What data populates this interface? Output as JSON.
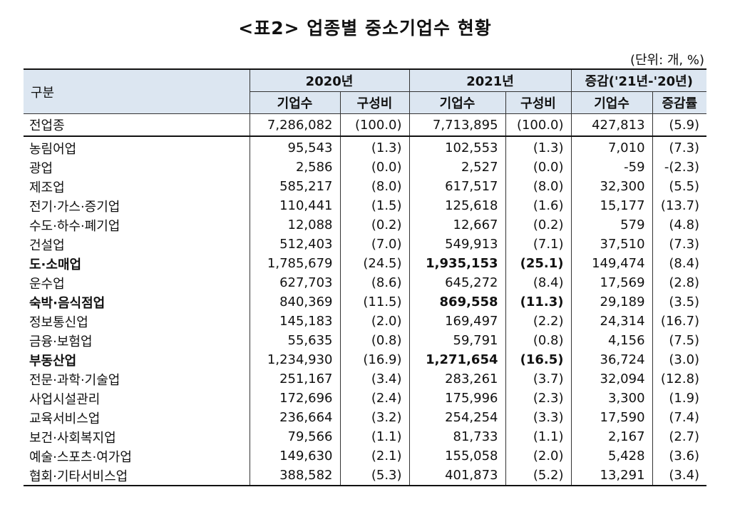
{
  "title": "<표2> 업종별 중소기업수 현황",
  "unit": "(단위: 개, %)",
  "header": {
    "category": "구분",
    "y2020": "2020년",
    "y2021": "2021년",
    "change": "증감('21년-'20년)",
    "count": "기업수",
    "ratio": "구성비",
    "rate": "증감률"
  },
  "rows": [
    {
      "label": "전업종",
      "c20": "7,286,082",
      "r20": "(100.0)",
      "c21": "7,713,895",
      "r21": "(100.0)",
      "dc": "427,813",
      "dr": "(5.9)"
    },
    {
      "label": "농림어업",
      "c20": "95,543",
      "r20": "(1.3)",
      "c21": "102,553",
      "r21": "(1.3)",
      "dc": "7,010",
      "dr": "(7.3)"
    },
    {
      "label": "광업",
      "c20": "2,586",
      "r20": "(0.0)",
      "c21": "2,527",
      "r21": "(0.0)",
      "dc": "-59",
      "dr": "-(2.3)"
    },
    {
      "label": "제조업",
      "c20": "585,217",
      "r20": "(8.0)",
      "c21": "617,517",
      "r21": "(8.0)",
      "dc": "32,300",
      "dr": "(5.5)"
    },
    {
      "label": "전기·가스·증기업",
      "c20": "110,441",
      "r20": "(1.5)",
      "c21": "125,618",
      "r21": "(1.6)",
      "dc": "15,177",
      "dr": "(13.7)"
    },
    {
      "label": "수도·하수·폐기업",
      "c20": "12,088",
      "r20": "(0.2)",
      "c21": "12,667",
      "r21": "(0.2)",
      "dc": "579",
      "dr": "(4.8)"
    },
    {
      "label": "건설업",
      "c20": "512,403",
      "r20": "(7.0)",
      "c21": "549,913",
      "r21": "(7.1)",
      "dc": "37,510",
      "dr": "(7.3)"
    },
    {
      "label": "도·소매업",
      "c20": "1,785,679",
      "r20": "(24.5)",
      "c21": "1,935,153",
      "r21": "(25.1)",
      "dc": "149,474",
      "dr": "(8.4)"
    },
    {
      "label": "운수업",
      "c20": "627,703",
      "r20": "(8.6)",
      "c21": "645,272",
      "r21": "(8.4)",
      "dc": "17,569",
      "dr": "(2.8)"
    },
    {
      "label": "숙박·음식점업",
      "c20": "840,369",
      "r20": "(11.5)",
      "c21": "869,558",
      "r21": "(11.3)",
      "dc": "29,189",
      "dr": "(3.5)"
    },
    {
      "label": "정보통신업",
      "c20": "145,183",
      "r20": "(2.0)",
      "c21": "169,497",
      "r21": "(2.2)",
      "dc": "24,314",
      "dr": "(16.7)"
    },
    {
      "label": "금융·보험업",
      "c20": "55,635",
      "r20": "(0.8)",
      "c21": "59,791",
      "r21": "(0.8)",
      "dc": "4,156",
      "dr": "(7.5)"
    },
    {
      "label": "부동산업",
      "c20": "1,234,930",
      "r20": "(16.9)",
      "c21": "1,271,654",
      "r21": "(16.5)",
      "dc": "36,724",
      "dr": "(3.0)"
    },
    {
      "label": "전문·과학·기술업",
      "c20": "251,167",
      "r20": "(3.4)",
      "c21": "283,261",
      "r21": "(3.7)",
      "dc": "32,094",
      "dr": "(12.8)"
    },
    {
      "label": "사업시설관리",
      "c20": "172,696",
      "r20": "(2.4)",
      "c21": "175,996",
      "r21": "(2.3)",
      "dc": "3,300",
      "dr": "(1.9)"
    },
    {
      "label": "교육서비스업",
      "c20": "236,664",
      "r20": "(3.2)",
      "c21": "254,254",
      "r21": "(3.3)",
      "dc": "17,590",
      "dr": "(7.4)"
    },
    {
      "label": "보건·사회복지업",
      "c20": "79,566",
      "r20": "(1.1)",
      "c21": "81,733",
      "r21": "(1.1)",
      "dc": "2,167",
      "dr": "(2.7)"
    },
    {
      "label": "예술·스포츠·여가업",
      "c20": "149,630",
      "r20": "(2.1)",
      "c21": "155,058",
      "r21": "(2.0)",
      "dc": "5,428",
      "dr": "(3.6)"
    },
    {
      "label": "협회·기타서비스업",
      "c20": "388,582",
      "r20": "(5.3)",
      "c21": "401,873",
      "r21": "(5.2)",
      "dc": "13,291",
      "dr": "(3.4)"
    }
  ]
}
